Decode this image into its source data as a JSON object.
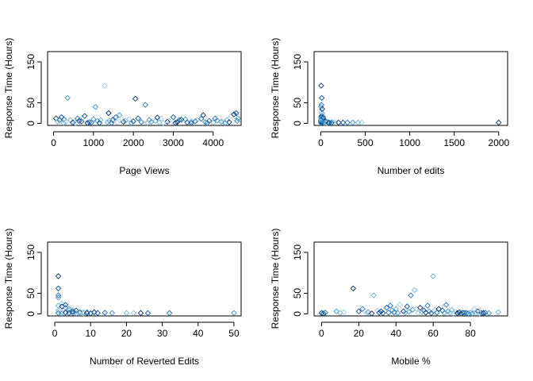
{
  "figure": {
    "background": "#ffffff",
    "marker": "diamond-open",
    "point_colors": [
      "#08306b",
      "#08519c",
      "#2171b5",
      "#4292c6",
      "#6baed6",
      "#9ecae1"
    ]
  },
  "chart_data": [
    {
      "type": "scatter",
      "title": "",
      "xlabel": "Page Views",
      "ylabel": "Response Time (Hours)",
      "xlim": [
        -150,
        4700
      ],
      "ylim": [
        -5,
        175
      ],
      "xticks": [
        0,
        1000,
        2000,
        3000,
        4000
      ],
      "yticks": [
        0,
        50,
        150
      ],
      "grid": false,
      "points": [
        [
          60,
          12
        ],
        [
          150,
          8
        ],
        [
          260,
          10
        ],
        [
          350,
          62
        ],
        [
          420,
          8
        ],
        [
          520,
          4
        ],
        [
          640,
          6
        ],
        [
          780,
          18
        ],
        [
          900,
          3
        ],
        [
          1050,
          40
        ],
        [
          1180,
          8
        ],
        [
          1280,
          92
        ],
        [
          1380,
          25
        ],
        [
          1480,
          8
        ],
        [
          1560,
          15
        ],
        [
          1650,
          20
        ],
        [
          1800,
          6
        ],
        [
          1900,
          10
        ],
        [
          2050,
          60
        ],
        [
          2120,
          12
        ],
        [
          2300,
          45
        ],
        [
          2400,
          8
        ],
        [
          2550,
          6
        ],
        [
          2700,
          12
        ],
        [
          2850,
          4
        ],
        [
          3000,
          15
        ],
        [
          3150,
          8
        ],
        [
          3300,
          10
        ],
        [
          3450,
          5
        ],
        [
          3600,
          8
        ],
        [
          3750,
          20
        ],
        [
          3900,
          6
        ],
        [
          4050,
          12
        ],
        [
          4200,
          4
        ],
        [
          4350,
          8
        ],
        [
          4450,
          18
        ],
        [
          4520,
          22
        ],
        [
          4580,
          25
        ],
        [
          4600,
          6
        ],
        [
          4620,
          12
        ],
        [
          100,
          4
        ],
        [
          300,
          3
        ],
        [
          480,
          2
        ],
        [
          700,
          5
        ],
        [
          950,
          2
        ],
        [
          1100,
          6
        ],
        [
          1350,
          3
        ],
        [
          1600,
          2
        ],
        [
          1750,
          4
        ],
        [
          2000,
          5
        ],
        [
          2200,
          3
        ],
        [
          2450,
          4
        ],
        [
          2650,
          2
        ],
        [
          2900,
          6
        ],
        [
          3100,
          3
        ],
        [
          3350,
          2
        ],
        [
          3550,
          5
        ],
        [
          3800,
          3
        ],
        [
          4000,
          2
        ],
        [
          4250,
          4
        ],
        [
          4400,
          3
        ],
        [
          200,
          15
        ],
        [
          600,
          12
        ],
        [
          1000,
          10
        ],
        [
          1400,
          6
        ],
        [
          1700,
          12
        ],
        [
          2600,
          14
        ],
        [
          3200,
          9
        ],
        [
          3700,
          11
        ],
        [
          4100,
          7
        ],
        [
          250,
          1
        ],
        [
          550,
          1
        ],
        [
          850,
          1
        ],
        [
          1150,
          1
        ],
        [
          1450,
          1
        ],
        [
          1950,
          1
        ],
        [
          2350,
          1
        ],
        [
          2750,
          1
        ],
        [
          3050,
          1
        ],
        [
          3450,
          1
        ],
        [
          3850,
          1
        ],
        [
          4300,
          1
        ]
      ]
    },
    {
      "type": "scatter",
      "title": "",
      "xlabel": "Number of edits",
      "ylabel": "Response Time (Hours)",
      "xlim": [
        -75,
        2100
      ],
      "ylim": [
        -5,
        175
      ],
      "xticks": [
        0,
        500,
        1000,
        1500,
        2000
      ],
      "yticks": [
        0,
        50,
        150
      ],
      "grid": false,
      "points": [
        [
          5,
          92
        ],
        [
          12,
          62
        ],
        [
          8,
          45
        ],
        [
          3,
          40
        ],
        [
          15,
          25
        ],
        [
          20,
          20
        ],
        [
          10,
          18
        ],
        [
          6,
          15
        ],
        [
          25,
          12
        ],
        [
          30,
          10
        ],
        [
          18,
          8
        ],
        [
          40,
          6
        ],
        [
          50,
          5
        ],
        [
          60,
          4
        ],
        [
          80,
          3
        ],
        [
          100,
          2
        ],
        [
          130,
          3
        ],
        [
          160,
          2
        ],
        [
          200,
          2
        ],
        [
          250,
          2
        ],
        [
          300,
          2
        ],
        [
          360,
          2
        ],
        [
          420,
          2
        ],
        [
          460,
          2
        ],
        [
          2000,
          2
        ],
        [
          2,
          5
        ],
        [
          4,
          3
        ],
        [
          7,
          2
        ],
        [
          9,
          6
        ],
        [
          11,
          4
        ],
        [
          14,
          2
        ],
        [
          22,
          3
        ],
        [
          35,
          2
        ],
        [
          45,
          1
        ],
        [
          55,
          2
        ],
        [
          70,
          1
        ],
        [
          90,
          1
        ],
        [
          120,
          1
        ],
        [
          2,
          1
        ],
        [
          1,
          8
        ],
        [
          3,
          12
        ],
        [
          6,
          28
        ],
        [
          16,
          35
        ],
        [
          28,
          14
        ]
      ]
    },
    {
      "type": "scatter",
      "title": "",
      "xlabel": "Number of Reverted Edits",
      "ylabel": "Response Time (Hours)",
      "xlim": [
        -2,
        52
      ],
      "ylim": [
        -5,
        175
      ],
      "xticks": [
        0,
        10,
        20,
        30,
        40,
        50
      ],
      "yticks": [
        0,
        50,
        150
      ],
      "grid": false,
      "points": [
        [
          1,
          92
        ],
        [
          1,
          62
        ],
        [
          1,
          45
        ],
        [
          1,
          40
        ],
        [
          1,
          20
        ],
        [
          2,
          25
        ],
        [
          2,
          18
        ],
        [
          3,
          22
        ],
        [
          3,
          15
        ],
        [
          4,
          12
        ],
        [
          4,
          8
        ],
        [
          5,
          10
        ],
        [
          5,
          6
        ],
        [
          6,
          8
        ],
        [
          7,
          4
        ],
        [
          8,
          3
        ],
        [
          9,
          5
        ],
        [
          10,
          2
        ],
        [
          11,
          4
        ],
        [
          12,
          2
        ],
        [
          14,
          3
        ],
        [
          16,
          2
        ],
        [
          20,
          2
        ],
        [
          22,
          2
        ],
        [
          24,
          2
        ],
        [
          26,
          2
        ],
        [
          32,
          2
        ],
        [
          50,
          2
        ],
        [
          1,
          8
        ],
        [
          2,
          5
        ],
        [
          3,
          3
        ],
        [
          4,
          2
        ],
        [
          5,
          2
        ],
        [
          6,
          1
        ],
        [
          7,
          2
        ],
        [
          8,
          1
        ],
        [
          9,
          2
        ],
        [
          10,
          1
        ],
        [
          1,
          2
        ],
        [
          2,
          1
        ]
      ]
    },
    {
      "type": "scatter",
      "title": "",
      "xlabel": "Mobile %",
      "ylabel": "Response Time (Hours)",
      "xlim": [
        -4,
        100
      ],
      "ylim": [
        -5,
        175
      ],
      "xticks": [
        0,
        20,
        40,
        60,
        80
      ],
      "yticks": [
        0,
        50,
        150
      ],
      "grid": false,
      "points": [
        [
          0,
          2
        ],
        [
          1,
          1
        ],
        [
          2,
          3
        ],
        [
          8,
          6
        ],
        [
          10,
          2
        ],
        [
          12,
          4
        ],
        [
          17,
          62
        ],
        [
          20,
          6
        ],
        [
          22,
          12
        ],
        [
          25,
          4
        ],
        [
          28,
          45
        ],
        [
          30,
          8
        ],
        [
          32,
          6
        ],
        [
          35,
          15
        ],
        [
          37,
          20
        ],
        [
          38,
          8
        ],
        [
          40,
          12
        ],
        [
          42,
          22
        ],
        [
          44,
          6
        ],
        [
          46,
          18
        ],
        [
          48,
          45
        ],
        [
          49,
          10
        ],
        [
          50,
          58
        ],
        [
          51,
          12
        ],
        [
          53,
          15
        ],
        [
          55,
          8
        ],
        [
          57,
          20
        ],
        [
          58,
          6
        ],
        [
          60,
          92
        ],
        [
          61,
          10
        ],
        [
          63,
          12
        ],
        [
          65,
          8
        ],
        [
          67,
          22
        ],
        [
          68,
          6
        ],
        [
          70,
          10
        ],
        [
          72,
          5
        ],
        [
          74,
          4
        ],
        [
          76,
          3
        ],
        [
          78,
          2
        ],
        [
          79,
          1
        ],
        [
          80,
          3
        ],
        [
          82,
          12
        ],
        [
          84,
          6
        ],
        [
          86,
          2
        ],
        [
          88,
          3
        ],
        [
          90,
          2
        ],
        [
          95,
          4
        ],
        [
          24,
          2
        ],
        [
          27,
          1
        ],
        [
          33,
          2
        ],
        [
          36,
          3
        ],
        [
          41,
          2
        ],
        [
          45,
          3
        ],
        [
          52,
          2
        ],
        [
          56,
          3
        ],
        [
          59,
          2
        ],
        [
          62,
          3
        ],
        [
          66,
          2
        ],
        [
          69,
          3
        ],
        [
          71,
          1
        ],
        [
          73,
          2
        ],
        [
          75,
          1
        ],
        [
          77,
          3
        ],
        [
          81,
          1
        ],
        [
          83,
          2
        ],
        [
          85,
          1
        ],
        [
          87,
          2
        ],
        [
          31,
          3
        ],
        [
          39,
          4
        ],
        [
          47,
          5
        ],
        [
          54,
          4
        ]
      ]
    }
  ]
}
